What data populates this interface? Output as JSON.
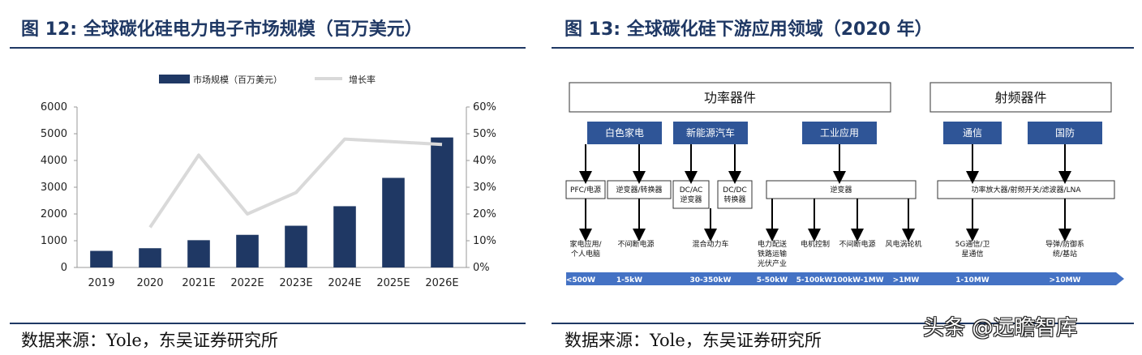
{
  "left": {
    "title": "图 12:  全球碳化硅电力电子市场规模（百万美元）",
    "source": "数据来源：Yole，东吴证券研究所"
  },
  "right": {
    "title": "图 13:  全球碳化硅下游应用领域（2020 年）",
    "source": "数据来源：Yole，东吴证券研究所"
  },
  "watermark": "头条 @远瞻智库",
  "colors": {
    "bar": "#1f3864",
    "line": "#d9d9d9",
    "title": "#1f3864",
    "category_box": "#2f5597",
    "scale_arrow": "#4472c4"
  },
  "chart_data": {
    "type": "bar",
    "categories": [
      "2019",
      "2020",
      "2021E",
      "2022E",
      "2023E",
      "2024E",
      "2025E",
      "2026E"
    ],
    "series": [
      {
        "name": "市场规模（百万美元）",
        "type": "bar",
        "axis": "left",
        "values": [
          620,
          720,
          1020,
          1220,
          1560,
          2290,
          3350,
          4860
        ]
      },
      {
        "name": "增长率",
        "type": "line",
        "axis": "right",
        "values": [
          null,
          0.15,
          0.42,
          0.2,
          0.28,
          0.48,
          0.47,
          0.46
        ]
      }
    ],
    "left_axis": {
      "min": 0,
      "max": 6000,
      "ticks": [
        "0",
        "1000",
        "2000",
        "3000",
        "4000",
        "5000",
        "6000"
      ]
    },
    "right_axis": {
      "min": 0,
      "max": 0.6,
      "ticks": [
        "0%",
        "10%",
        "20%",
        "30%",
        "40%",
        "50%",
        "60%"
      ]
    },
    "legend": [
      "市场规模（百万美元）",
      "增长率"
    ],
    "title": "全球碳化硅电力电子市场规模（百万美元）"
  },
  "diagram": {
    "groups": [
      {
        "label": "功率器件"
      },
      {
        "label": "射频器件"
      }
    ],
    "categories": [
      {
        "label": "白色家电"
      },
      {
        "label": "新能源汽车"
      },
      {
        "label": "工业应用"
      },
      {
        "label": "通信"
      },
      {
        "label": "国防"
      }
    ],
    "devices": [
      {
        "lines": [
          "PFC/电源"
        ]
      },
      {
        "lines": [
          "逆变器/转换器"
        ]
      },
      {
        "lines": [
          "DC/AC",
          "逆变器"
        ]
      },
      {
        "lines": [
          "DC/DC",
          "转换器"
        ]
      },
      {
        "lines": [
          "逆变器"
        ]
      },
      {
        "lines": [
          "功率放大器/射频开关/滤波器/LNA"
        ]
      }
    ],
    "applications": [
      {
        "lines": [
          "家电应用/",
          "个人电脑"
        ]
      },
      {
        "lines": [
          "不间断电源"
        ]
      },
      {
        "lines": [
          "混合动力车"
        ]
      },
      {
        "lines": [
          "电力配送",
          "铁路运输",
          "光伏产业"
        ]
      },
      {
        "lines": [
          "电机控制"
        ]
      },
      {
        "lines": [
          "不间断电源"
        ]
      },
      {
        "lines": [
          "风电涡轮机"
        ]
      },
      {
        "lines": [
          "5G通信/卫",
          "星通信"
        ]
      },
      {
        "lines": [
          "导弹/防御系",
          "统/基站"
        ]
      }
    ],
    "power_scale": [
      "<500W",
      "1-5kW",
      "30-350kW",
      "5-50kW",
      "5-100kW",
      "100kW-1MW",
      ">1MW",
      "1-10MW",
      ">10MW"
    ]
  }
}
